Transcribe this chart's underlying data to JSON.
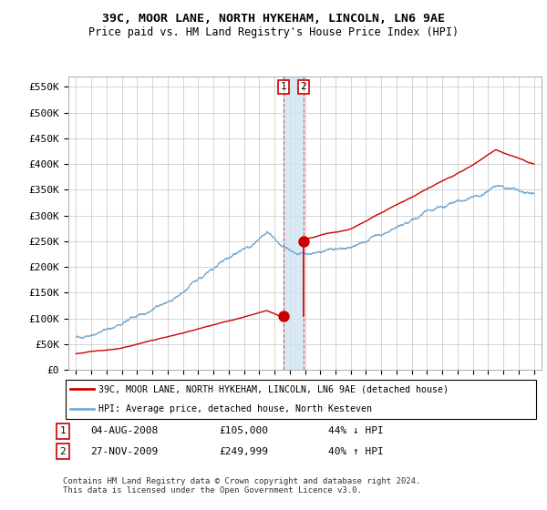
{
  "title": "39C, MOOR LANE, NORTH HYKEHAM, LINCOLN, LN6 9AE",
  "subtitle": "Price paid vs. HM Land Registry's House Price Index (HPI)",
  "ylabel_ticks": [
    "£0",
    "£50K",
    "£100K",
    "£150K",
    "£200K",
    "£250K",
    "£300K",
    "£350K",
    "£400K",
    "£450K",
    "£500K",
    "£550K"
  ],
  "ytick_values": [
    0,
    50000,
    100000,
    150000,
    200000,
    250000,
    300000,
    350000,
    400000,
    450000,
    500000,
    550000
  ],
  "ylim": [
    0,
    570000
  ],
  "red_color": "#cc0000",
  "blue_color": "#7aadd4",
  "transaction1": {
    "date_num": 2008.58,
    "price": 105000,
    "label": "1"
  },
  "transaction2": {
    "date_num": 2009.9,
    "price": 249999,
    "label": "2"
  },
  "vline_color": "#cc0000",
  "shade_color": "#d0e4f0",
  "legend_label_red": "39C, MOOR LANE, NORTH HYKEHAM, LINCOLN, LN6 9AE (detached house)",
  "legend_label_blue": "HPI: Average price, detached house, North Kesteven",
  "footer": "Contains HM Land Registry data © Crown copyright and database right 2024.\nThis data is licensed under the Open Government Licence v3.0.",
  "background_color": "#ffffff",
  "grid_color": "#cccccc",
  "plot_bg": "#f8f8f8"
}
